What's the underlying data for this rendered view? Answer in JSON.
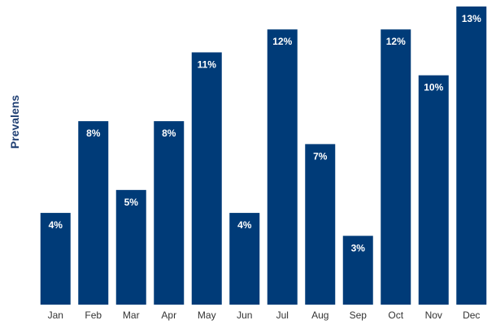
{
  "chart_data": {
    "type": "bar",
    "title": "",
    "xlabel": "",
    "ylabel": "Prevalens",
    "categories": [
      "Jan",
      "Feb",
      "Mar",
      "Apr",
      "May",
      "Jun",
      "Jul",
      "Aug",
      "Sep",
      "Oct",
      "Nov",
      "Dec"
    ],
    "values": [
      4,
      8,
      5,
      8,
      11,
      4,
      12,
      7,
      3,
      12,
      10,
      13
    ],
    "labels": [
      "4%",
      "8%",
      "5%",
      "8%",
      "11%",
      "4%",
      "12%",
      "7%",
      "3%",
      "12%",
      "10%",
      "13%"
    ],
    "value_unit": "%",
    "grid": false,
    "legend": "none",
    "colors": {
      "bar": "#003B78",
      "bar_label": "#ffffff",
      "axis_label": "#1F3F73",
      "tick_label": "#333333"
    }
  }
}
